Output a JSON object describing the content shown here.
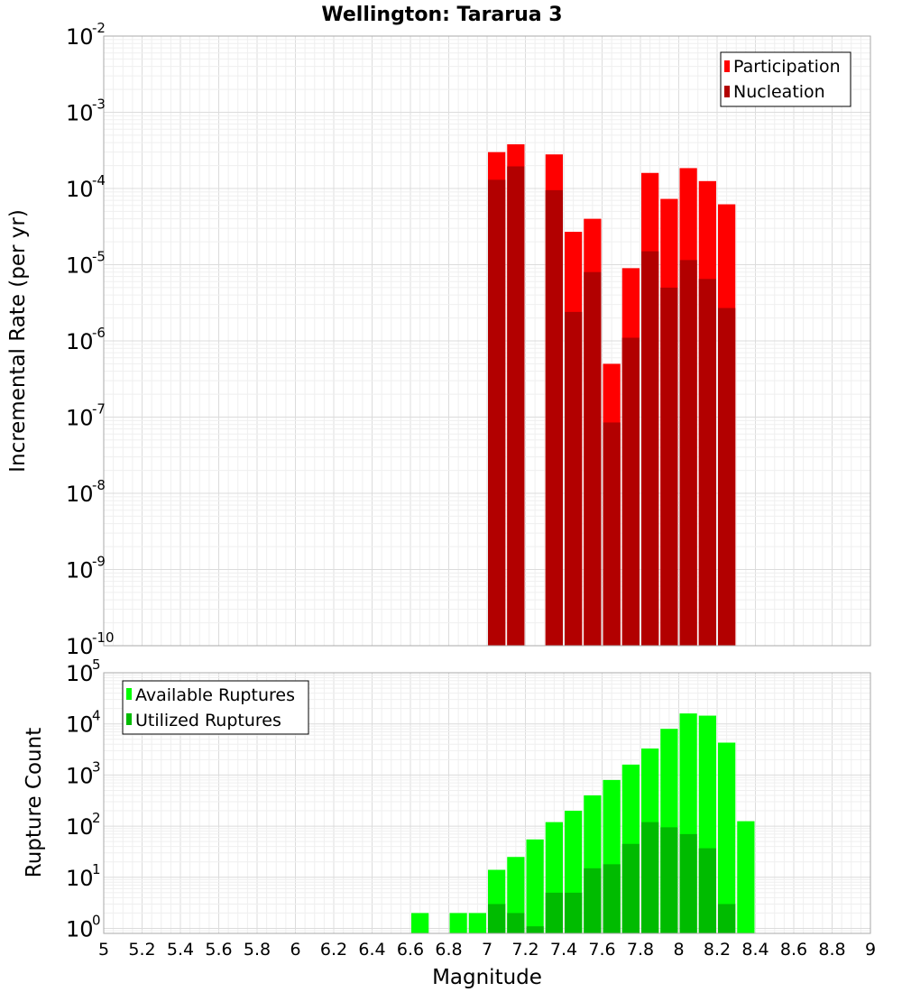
{
  "chart_data": [
    {
      "type": "bar",
      "title": "Wellington: Tararua 3",
      "ylabel": "Incremental Rate (per yr)",
      "xlabel": "",
      "xlim": [
        5,
        9
      ],
      "yscale": "log",
      "ylim": [
        1e-10,
        0.01
      ],
      "y_ticks": [
        {
          "base": "10",
          "exp": "-10"
        },
        {
          "base": "10",
          "exp": "-9"
        },
        {
          "base": "10",
          "exp": "-8"
        },
        {
          "base": "10",
          "exp": "-7"
        },
        {
          "base": "10",
          "exp": "-6"
        },
        {
          "base": "10",
          "exp": "-5"
        },
        {
          "base": "10",
          "exp": "-4"
        },
        {
          "base": "10",
          "exp": "-3"
        },
        {
          "base": "10",
          "exp": "-2"
        }
      ],
      "legend_position": "top-right",
      "bar_width": 0.1,
      "x": [
        7.05,
        7.15,
        7.25,
        7.35,
        7.45,
        7.55,
        7.65,
        7.75,
        7.85,
        7.95,
        8.05,
        8.15,
        8.25
      ],
      "series": [
        {
          "name": "Participation",
          "color": "#ff0000",
          "values": [
            0.0003,
            0.00038,
            null,
            0.00028,
            2.7e-05,
            4e-05,
            5e-07,
            9e-06,
            0.00016,
            7.3e-05,
            0.000185,
            0.000125,
            6.2e-05
          ]
        },
        {
          "name": "Nucleation",
          "color": "#b20000",
          "values": [
            0.00013,
            0.000195,
            null,
            9.5e-05,
            2.4e-06,
            8e-06,
            8.5e-08,
            1.1e-06,
            1.5e-05,
            5e-06,
            1.15e-05,
            6.5e-06,
            2.7e-06
          ]
        }
      ]
    },
    {
      "type": "bar",
      "title": "",
      "ylabel": "Rupture Count",
      "xlabel": "Magnitude",
      "xlim": [
        5,
        9
      ],
      "yscale": "log",
      "ylim": [
        0.8,
        100000
      ],
      "x_ticks": [
        "5",
        "5.2",
        "5.4",
        "5.6",
        "5.8",
        "6",
        "6.2",
        "6.4",
        "6.6",
        "6.8",
        "7",
        "7.2",
        "7.4",
        "7.6",
        "7.8",
        "8",
        "8.2",
        "8.4",
        "8.6",
        "8.8",
        "9"
      ],
      "y_ticks": [
        {
          "base": "10",
          "exp": "0"
        },
        {
          "base": "10",
          "exp": "1"
        },
        {
          "base": "10",
          "exp": "2"
        },
        {
          "base": "10",
          "exp": "3"
        },
        {
          "base": "10",
          "exp": "4"
        },
        {
          "base": "10",
          "exp": "5"
        }
      ],
      "legend_position": "top-left",
      "bar_width": 0.1,
      "x": [
        6.65,
        6.75,
        6.85,
        6.95,
        7.05,
        7.15,
        7.25,
        7.35,
        7.45,
        7.55,
        7.65,
        7.75,
        7.85,
        7.95,
        8.05,
        8.15,
        8.25,
        8.35
      ],
      "series": [
        {
          "name": "Available Ruptures",
          "color": "#00ff00",
          "values": [
            2,
            null,
            2,
            2,
            14,
            25,
            55,
            120,
            200,
            400,
            800,
            1600,
            3300,
            8000,
            16000,
            14500,
            4300,
            125
          ]
        },
        {
          "name": "Utilized Ruptures",
          "color": "#00bb00",
          "values": [
            null,
            null,
            null,
            null,
            3,
            2,
            1.1,
            5,
            5,
            15,
            18,
            45,
            120,
            95,
            70,
            37,
            3,
            null
          ]
        }
      ]
    }
  ]
}
